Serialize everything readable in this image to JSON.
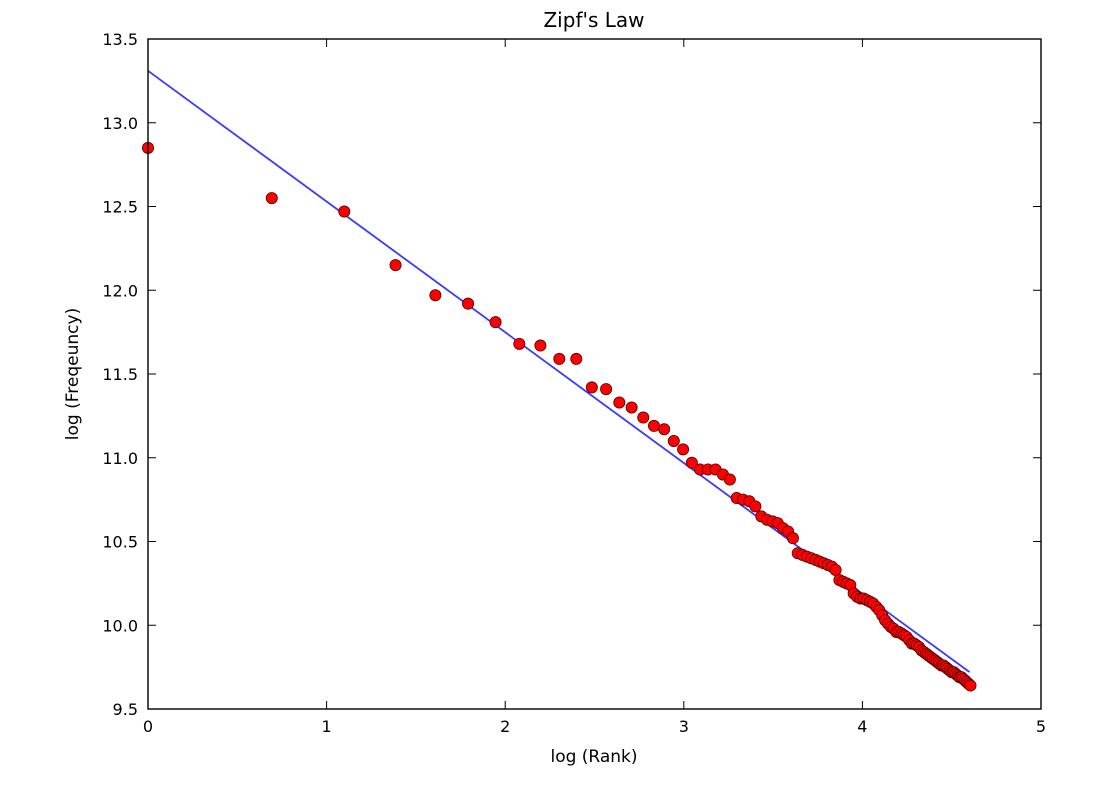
{
  "chart_data": {
    "type": "scatter",
    "title": "Zipf's Law",
    "xlabel": "log (Rank)",
    "ylabel": "log (Freqeuncy)",
    "xlim": [
      0,
      5
    ],
    "ylim": [
      9.5,
      13.5
    ],
    "x_ticks": [
      "0",
      "1",
      "2",
      "3",
      "4",
      "5"
    ],
    "y_ticks": [
      "9.5",
      "10.0",
      "10.5",
      "11.0",
      "11.5",
      "12.0",
      "12.5",
      "13.0",
      "13.5"
    ],
    "grid": false,
    "legend": "none",
    "colors": {
      "points": "#ff0000",
      "points_edge": "#550000",
      "fit_line": "#3a3aff"
    },
    "series": [
      {
        "x": [
          0.0,
          0.693,
          1.099,
          1.386,
          1.609,
          1.792,
          1.946,
          2.079,
          2.197,
          2.303,
          2.398,
          2.485,
          2.565,
          2.639,
          2.708,
          2.773,
          2.833,
          2.89,
          2.944,
          2.996,
          3.045,
          3.091,
          3.135,
          3.178,
          3.219,
          3.258,
          3.296,
          3.332,
          3.367,
          3.401,
          3.434,
          3.466,
          3.497,
          3.526,
          3.555,
          3.584,
          3.611,
          3.638,
          3.664,
          3.689,
          3.714,
          3.738,
          3.761,
          3.784,
          3.807,
          3.829,
          3.85,
          3.871,
          3.892,
          3.912,
          3.932,
          3.951,
          3.97,
          3.989,
          4.007,
          4.025,
          4.043,
          4.06,
          4.078,
          4.094,
          4.111,
          4.127,
          4.143,
          4.159,
          4.174,
          4.19,
          4.205,
          4.22,
          4.234,
          4.248,
          4.263,
          4.277,
          4.29,
          4.304,
          4.317,
          4.331,
          4.344,
          4.357,
          4.369,
          4.382,
          4.394,
          4.407,
          4.419,
          4.431,
          4.443,
          4.454,
          4.466,
          4.477,
          4.489,
          4.5,
          4.511,
          4.522,
          4.533,
          4.543,
          4.554,
          4.564,
          4.575,
          4.585,
          4.595,
          4.605
        ],
        "y": [
          12.85,
          12.55,
          12.47,
          12.15,
          11.97,
          11.92,
          11.81,
          11.68,
          11.67,
          11.59,
          11.59,
          11.42,
          11.41,
          11.33,
          11.3,
          11.24,
          11.19,
          11.17,
          11.1,
          11.05,
          10.97,
          10.93,
          10.93,
          10.93,
          10.9,
          10.87,
          10.76,
          10.75,
          10.74,
          10.71,
          10.65,
          10.63,
          10.62,
          10.61,
          10.58,
          10.56,
          10.52,
          10.43,
          10.42,
          10.41,
          10.4,
          10.39,
          10.38,
          10.37,
          10.36,
          10.35,
          10.33,
          10.27,
          10.26,
          10.25,
          10.24,
          10.19,
          10.17,
          10.16,
          10.16,
          10.15,
          10.14,
          10.13,
          10.11,
          10.09,
          10.06,
          10.03,
          10.01,
          9.99,
          9.98,
          9.96,
          9.96,
          9.95,
          9.94,
          9.93,
          9.91,
          9.89,
          9.89,
          9.88,
          9.87,
          9.85,
          9.84,
          9.83,
          9.82,
          9.81,
          9.8,
          9.79,
          9.78,
          9.77,
          9.76,
          9.76,
          9.75,
          9.74,
          9.73,
          9.72,
          9.72,
          9.71,
          9.7,
          9.69,
          9.69,
          9.68,
          9.67,
          9.66,
          9.65,
          9.64
        ]
      }
    ],
    "fit_line": {
      "x": [
        0,
        4.6
      ],
      "y": [
        13.31,
        9.72
      ]
    }
  }
}
